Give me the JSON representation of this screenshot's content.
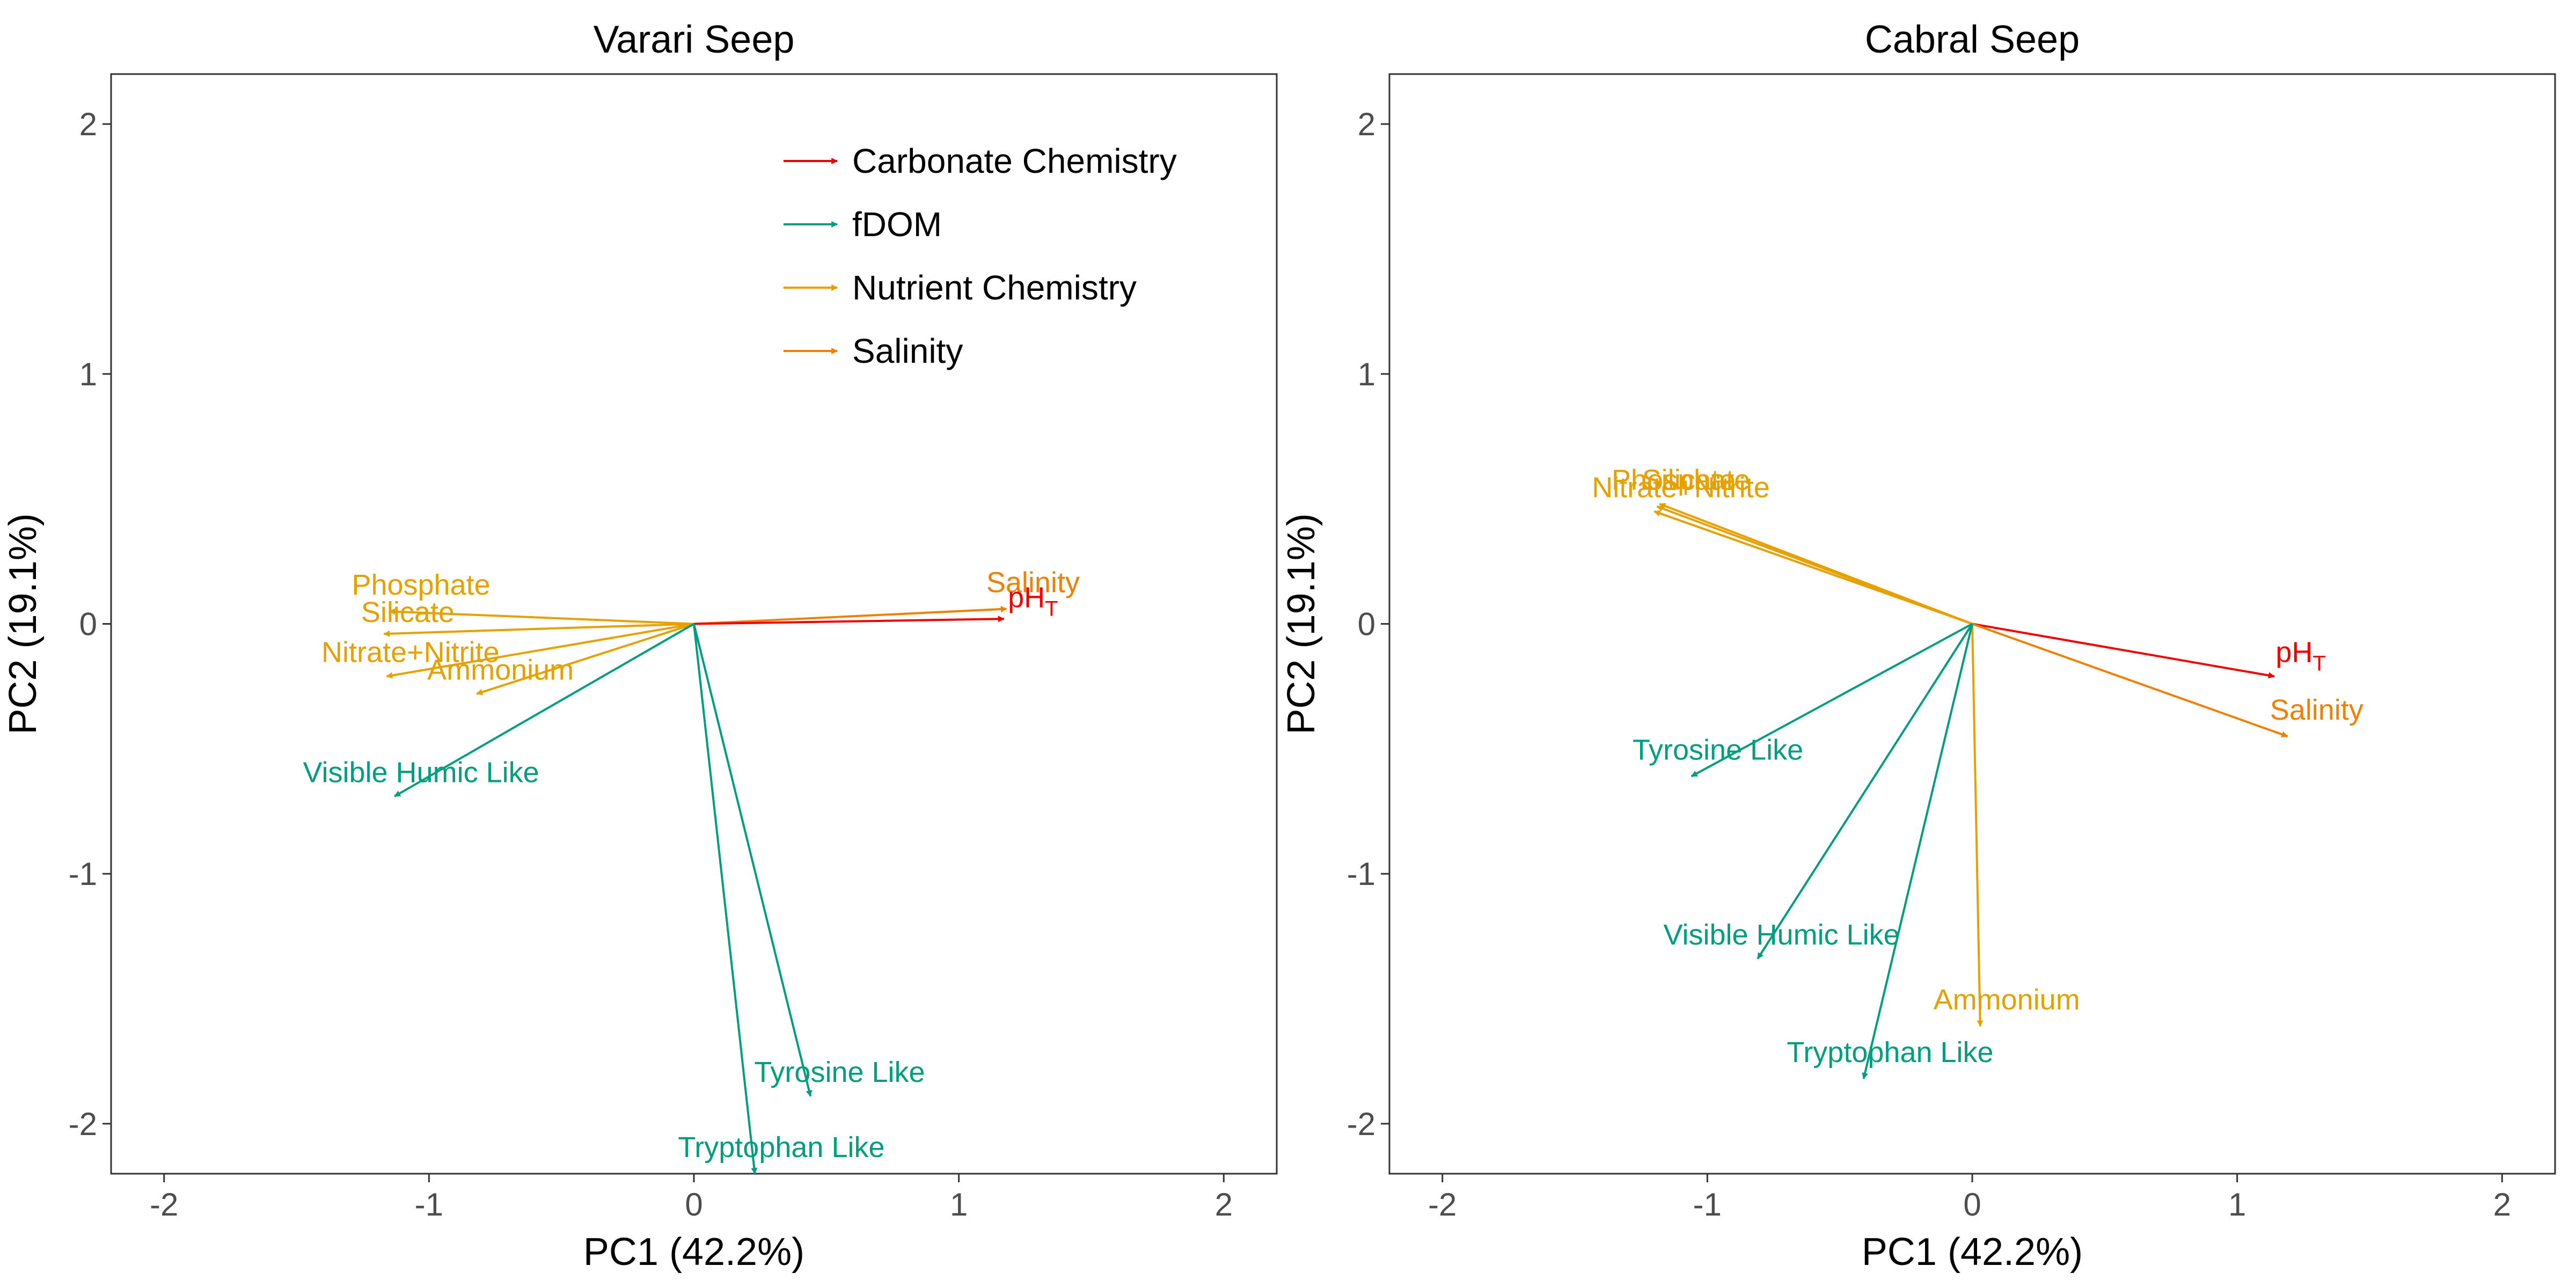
{
  "chart_data": [
    {
      "type": "biplot",
      "title": "Varari Seep",
      "xlabel": "PC1 (42.2%)",
      "ylabel": "PC2 (19.1%)",
      "xlim": [
        -2.2,
        2.2
      ],
      "ylim": [
        -2.2,
        2.2
      ],
      "xticks": [
        -2,
        -1,
        0,
        1,
        2
      ],
      "yticks": [
        -2,
        -1,
        0,
        1,
        2
      ],
      "xtick_labels": [
        "-2",
        "-1",
        "0",
        "1",
        "2"
      ],
      "ytick_labels": [
        "-2",
        "-1",
        "0",
        "1",
        "2"
      ],
      "grid": false,
      "legend_position": "top-right",
      "vectors": [
        {
          "label": "Salinity",
          "sub": "",
          "group": "Salinity",
          "x": 1.18,
          "y": 0.06,
          "lx": 1.28,
          "ly": 0.17
        },
        {
          "label": "pH",
          "sub": "T",
          "group": "Carbonate Chemistry",
          "x": 1.17,
          "y": 0.02,
          "lx": 1.28,
          "ly": 0.11
        },
        {
          "label": "Phosphate",
          "sub": "",
          "group": "Nutrient Chemistry",
          "x": -1.15,
          "y": 0.05,
          "lx": -1.03,
          "ly": 0.16
        },
        {
          "label": "Silicate",
          "sub": "",
          "group": "Nutrient Chemistry",
          "x": -1.17,
          "y": -0.04,
          "lx": -1.08,
          "ly": 0.05
        },
        {
          "label": "Nitrate+Nitrite",
          "sub": "",
          "group": "Nutrient Chemistry",
          "x": -1.16,
          "y": -0.21,
          "lx": -1.07,
          "ly": -0.11
        },
        {
          "label": "Ammonium",
          "sub": "",
          "group": "Nutrient Chemistry",
          "x": -0.82,
          "y": -0.28,
          "lx": -0.73,
          "ly": -0.18
        },
        {
          "label": "Visible Humic Like",
          "sub": "",
          "group": "fDOM",
          "x": -1.13,
          "y": -0.69,
          "lx": -1.03,
          "ly": -0.59
        },
        {
          "label": "Tyrosine Like",
          "sub": "",
          "group": "fDOM",
          "x": 0.44,
          "y": -1.89,
          "lx": 0.55,
          "ly": -1.79
        },
        {
          "label": "Tryptophan Like",
          "sub": "",
          "group": "fDOM",
          "x": 0.23,
          "y": -2.2,
          "lx": 0.33,
          "ly": -2.09
        }
      ]
    },
    {
      "type": "biplot",
      "title": "Cabral Seep",
      "xlabel": "PC1 (42.2%)",
      "ylabel": "PC2 (19.1%)",
      "xlim": [
        -2.2,
        2.2
      ],
      "ylim": [
        -2.2,
        2.2
      ],
      "xticks": [
        -2,
        -1,
        0,
        1,
        2
      ],
      "yticks": [
        -2,
        -1,
        0,
        1,
        2
      ],
      "xtick_labels": [
        "-2",
        "-1",
        "0",
        "1",
        "2"
      ],
      "ytick_labels": [
        "-2",
        "-1",
        "0",
        "1",
        "2"
      ],
      "grid": false,
      "vectors": [
        {
          "label": "pH",
          "sub": "T",
          "group": "Carbonate Chemistry",
          "x": 1.14,
          "y": -0.21,
          "lx": 1.24,
          "ly": -0.11
        },
        {
          "label": "Salinity",
          "sub": "",
          "group": "Salinity",
          "x": 1.19,
          "y": -0.45,
          "lx": 1.3,
          "ly": -0.34
        },
        {
          "label": "Phosphate",
          "sub": "",
          "group": "Nutrient Chemistry",
          "x": -1.19,
          "y": 0.47,
          "lx": -1.1,
          "ly": 0.58
        },
        {
          "label": "Silicate",
          "sub": "",
          "group": "Nutrient Chemistry",
          "x": -1.18,
          "y": 0.48,
          "lx": -1.07,
          "ly": 0.58
        },
        {
          "label": "Nitrate+Nitrite",
          "sub": "",
          "group": "Nutrient Chemistry",
          "x": -1.2,
          "y": 0.45,
          "lx": -1.1,
          "ly": 0.55
        },
        {
          "label": "Tyrosine Like",
          "sub": "",
          "group": "fDOM",
          "x": -1.06,
          "y": -0.61,
          "lx": -0.96,
          "ly": -0.5
        },
        {
          "label": "Visible Humic Like",
          "sub": "",
          "group": "fDOM",
          "x": -0.81,
          "y": -1.34,
          "lx": -0.72,
          "ly": -1.24
        },
        {
          "label": "Ammonium",
          "sub": "",
          "group": "Nutrient Chemistry",
          "x": 0.03,
          "y": -1.61,
          "lx": 0.13,
          "ly": -1.5
        },
        {
          "label": "Tryptophan Like",
          "sub": "",
          "group": "fDOM",
          "x": -0.41,
          "y": -1.82,
          "lx": -0.31,
          "ly": -1.71
        }
      ]
    }
  ],
  "legend": [
    {
      "name": "Carbonate Chemistry",
      "color": "#f00000"
    },
    {
      "name": "fDOM",
      "color": "#009e7f"
    },
    {
      "name": "Nutrient Chemistry",
      "color": "#e6a100"
    },
    {
      "name": "Salinity",
      "color": "#f08000"
    }
  ],
  "colors": {
    "Carbonate Chemistry": "#f00000",
    "fDOM": "#009e7f",
    "Nutrient Chemistry": "#e6a100",
    "Salinity": "#f08000"
  }
}
